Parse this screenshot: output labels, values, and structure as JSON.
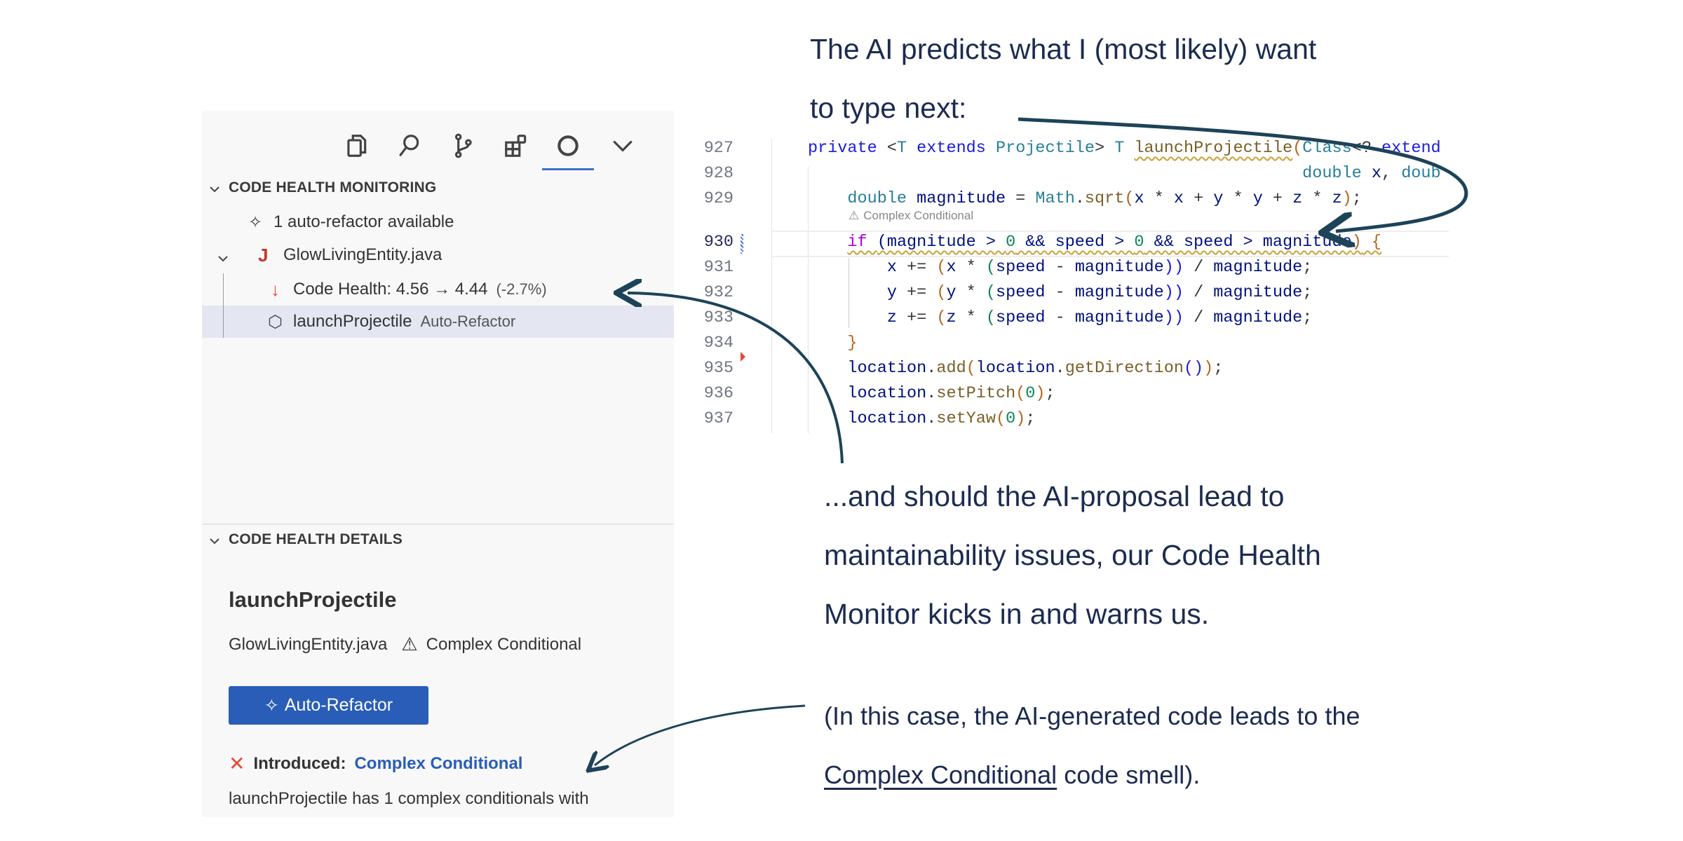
{
  "sidebar": {
    "toolbar_icons": [
      "files-icon",
      "search-icon",
      "source-control-icon",
      "extensions-icon",
      "codescene-icon",
      "chevron-down-icon"
    ],
    "monitoring": {
      "title": "CODE HEALTH MONITORING",
      "auto_refactor": "1 auto-refactor available",
      "file": "GlowLivingEntity.java",
      "file_icon_letter": "J",
      "health": "Code Health: 4.56 → 4.44",
      "health_delta": "(-2.7%)",
      "function": "launchProjectile",
      "function_action": "Auto-Refactor"
    },
    "details": {
      "title": "CODE HEALTH DETAILS",
      "function": "launchProjectile",
      "file": "GlowLivingEntity.java",
      "smell": "Complex Conditional",
      "button": "Auto-Refactor",
      "introduced_label": "Introduced:",
      "introduced_link": "Complex Conditional",
      "description": "launchProjectile has 1 complex conditionals with"
    }
  },
  "editor": {
    "codelens": "Complex Conditional",
    "current_line": "930",
    "lines": [
      {
        "n": "927",
        "tokens": [
          [
            "private",
            "kw"
          ],
          [
            " <",
            "op"
          ],
          [
            "T",
            "ty"
          ],
          [
            " ",
            "op"
          ],
          [
            "extends",
            "kw"
          ],
          [
            " ",
            "op"
          ],
          [
            "Projectile",
            "ty"
          ],
          [
            "> ",
            "op"
          ],
          [
            "T",
            "ty"
          ],
          [
            " ",
            "op"
          ],
          [
            "launchProjectile",
            "fn squig"
          ],
          [
            "(",
            "br"
          ],
          [
            "Class",
            "ty"
          ],
          [
            "<? ",
            "op"
          ],
          [
            "extend",
            "kw"
          ]
        ]
      },
      {
        "n": "928",
        "tokens": [
          [
            "                                                  ",
            "op"
          ],
          [
            "double",
            "ty"
          ],
          [
            " x",
            "va"
          ],
          [
            ", ",
            "op"
          ],
          [
            "doub",
            "ty"
          ]
        ]
      },
      {
        "n": "929",
        "tokens": [
          [
            "    ",
            "op"
          ],
          [
            "double",
            "ty"
          ],
          [
            " magnitude",
            "va"
          ],
          [
            " = ",
            "op"
          ],
          [
            "Math",
            "ty"
          ],
          [
            ".",
            "op"
          ],
          [
            "sqrt",
            "fn"
          ],
          [
            "(",
            "br"
          ],
          [
            "x",
            "va"
          ],
          [
            " * ",
            "op"
          ],
          [
            "x",
            "va"
          ],
          [
            " + ",
            "op"
          ],
          [
            "y",
            "va"
          ],
          [
            " * ",
            "op"
          ],
          [
            "y",
            "va"
          ],
          [
            " + ",
            "op"
          ],
          [
            "z",
            "va"
          ],
          [
            " * ",
            "op"
          ],
          [
            "z",
            "va"
          ],
          [
            ")",
            "br"
          ],
          [
            ";",
            "op"
          ]
        ]
      },
      {
        "n": "930",
        "tokens": [
          [
            "    ",
            "op"
          ],
          [
            "if ",
            "ctl squig"
          ],
          [
            "(magnitude > ",
            "va squig"
          ],
          [
            "0",
            "nu squig"
          ],
          [
            " && speed > ",
            "va squig"
          ],
          [
            "0",
            "nu squig"
          ],
          [
            " && speed > magnitude",
            "va squig"
          ],
          [
            ")",
            "br squig"
          ],
          [
            " {",
            "br squig"
          ]
        ]
      },
      {
        "n": "931",
        "tokens": [
          [
            "        ",
            "op"
          ],
          [
            "x",
            "va"
          ],
          [
            " += ",
            "op"
          ],
          [
            "(",
            "br"
          ],
          [
            "x",
            "va"
          ],
          [
            " * ",
            "op"
          ],
          [
            "(",
            "nu"
          ],
          [
            "speed",
            "va"
          ],
          [
            " - ",
            "op"
          ],
          [
            "magnitude",
            "va"
          ],
          [
            "))",
            "kw"
          ],
          [
            " / ",
            "op"
          ],
          [
            "magnitude",
            "va"
          ],
          [
            ";",
            "op"
          ]
        ]
      },
      {
        "n": "932",
        "tokens": [
          [
            "        ",
            "op"
          ],
          [
            "y",
            "va"
          ],
          [
            " += ",
            "op"
          ],
          [
            "(",
            "br"
          ],
          [
            "y",
            "va"
          ],
          [
            " * ",
            "op"
          ],
          [
            "(",
            "nu"
          ],
          [
            "speed",
            "va"
          ],
          [
            " - ",
            "op"
          ],
          [
            "magnitude",
            "va"
          ],
          [
            "))",
            "kw"
          ],
          [
            " / ",
            "op"
          ],
          [
            "magnitude",
            "va"
          ],
          [
            ";",
            "op"
          ]
        ]
      },
      {
        "n": "933",
        "tokens": [
          [
            "        ",
            "op"
          ],
          [
            "z",
            "va"
          ],
          [
            " += ",
            "op"
          ],
          [
            "(",
            "br"
          ],
          [
            "z",
            "va"
          ],
          [
            " * ",
            "op"
          ],
          [
            "(",
            "nu"
          ],
          [
            "speed",
            "va"
          ],
          [
            " - ",
            "op"
          ],
          [
            "magnitude",
            "va"
          ],
          [
            "))",
            "kw"
          ],
          [
            " / ",
            "op"
          ],
          [
            "magnitude",
            "va"
          ],
          [
            ";",
            "op"
          ]
        ]
      },
      {
        "n": "934",
        "tokens": [
          [
            "    ",
            "op"
          ],
          [
            "}",
            "br"
          ]
        ]
      },
      {
        "n": "935",
        "tokens": [
          [
            "    ",
            "op"
          ],
          [
            "location",
            "va"
          ],
          [
            ".",
            "op"
          ],
          [
            "add",
            "fn"
          ],
          [
            "(",
            "br"
          ],
          [
            "location",
            "va"
          ],
          [
            ".",
            "op"
          ],
          [
            "getDirection",
            "fn"
          ],
          [
            "()",
            "kw"
          ],
          [
            ")",
            "br"
          ],
          [
            ";",
            "op"
          ]
        ]
      },
      {
        "n": "936",
        "tokens": [
          [
            "    ",
            "op"
          ],
          [
            "location",
            "va"
          ],
          [
            ".",
            "op"
          ],
          [
            "setPitch",
            "fn"
          ],
          [
            "(",
            "br"
          ],
          [
            "0",
            "nu"
          ],
          [
            ")",
            "br"
          ],
          [
            ";",
            "op"
          ]
        ]
      },
      {
        "n": "937",
        "tokens": [
          [
            "    ",
            "op"
          ],
          [
            "location",
            "va"
          ],
          [
            ".",
            "op"
          ],
          [
            "setYaw",
            "fn"
          ],
          [
            "(",
            "br"
          ],
          [
            "0",
            "nu"
          ],
          [
            ")",
            "br"
          ],
          [
            ";",
            "op"
          ]
        ]
      }
    ]
  },
  "annotations": {
    "top_line1": "The AI predicts what I (most likely) want",
    "top_line2": "to type next:",
    "mid_line1": "...and should the AI-proposal lead to",
    "mid_line2": "maintainability issues, our Code Health",
    "mid_line3": "Monitor kicks in and warns us.",
    "note_line1": "(In this case, the AI-generated code leads to the",
    "note_link": "Complex Conditional",
    "note_rest": " code smell)."
  },
  "colors": {
    "text": "#1c2b50",
    "accent": "#2a5db7",
    "arrow": "#1d4358",
    "error": "#e5493a",
    "panel": "#f8f8f8"
  }
}
